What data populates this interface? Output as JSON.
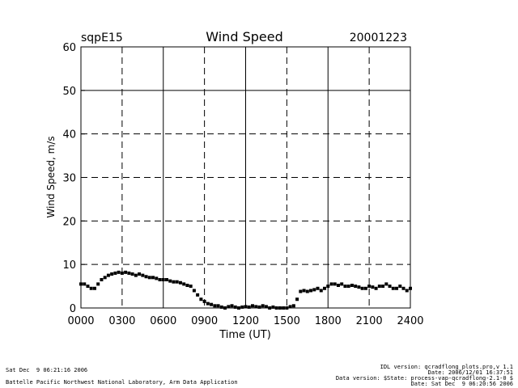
{
  "header": {
    "site": "sqpE15",
    "date": "20001223"
  },
  "chart_data": {
    "type": "scatter",
    "title": "Wind Speed",
    "xlabel": "Time (UT)",
    "ylabel": "Wind Speed, m/s",
    "xlim": [
      0,
      24
    ],
    "ylim": [
      0,
      60
    ],
    "xticks": [
      0,
      3,
      6,
      9,
      12,
      15,
      18,
      21,
      24
    ],
    "xtick_labels": [
      "0000",
      "0300",
      "0600",
      "0900",
      "1200",
      "1500",
      "1800",
      "2100",
      "2400"
    ],
    "yticks": [
      0,
      10,
      20,
      30,
      40,
      50,
      60
    ],
    "ytick_labels": [
      "0",
      "10",
      "20",
      "30",
      "40",
      "50",
      "60"
    ],
    "grid": true,
    "series": [
      {
        "x": [
          0.0,
          0.25,
          0.5,
          0.75,
          1.0,
          1.25,
          1.5,
          1.75,
          2.0,
          2.25,
          2.5,
          2.75,
          3.0,
          3.25,
          3.5,
          3.75,
          4.0,
          4.25,
          4.5,
          4.75,
          5.0,
          5.25,
          5.5,
          5.75,
          6.0,
          6.25,
          6.5,
          6.75,
          7.0,
          7.25,
          7.5,
          7.75,
          8.0,
          8.25,
          8.5,
          8.75,
          9.0,
          9.25,
          9.5,
          9.75,
          10.0,
          10.25,
          10.5,
          10.75,
          11.0,
          11.25,
          11.5,
          11.75,
          12.0,
          12.25,
          12.5,
          12.75,
          13.0,
          13.25,
          13.5,
          13.75,
          14.0,
          14.25,
          14.5,
          14.75,
          15.0,
          15.25,
          15.5,
          15.75,
          16.0,
          16.25,
          16.5,
          16.75,
          17.0,
          17.25,
          17.5,
          17.75,
          18.0,
          18.25,
          18.5,
          18.75,
          19.0,
          19.25,
          19.5,
          19.75,
          20.0,
          20.25,
          20.5,
          20.75,
          21.0,
          21.25,
          21.5,
          21.75,
          22.0,
          22.25,
          22.5,
          22.75,
          23.0,
          23.25,
          23.5,
          23.75,
          24.0
        ],
        "y": [
          5.5,
          5.5,
          5.0,
          4.5,
          4.5,
          5.5,
          6.5,
          7.0,
          7.5,
          7.8,
          8.0,
          8.2,
          8.0,
          8.2,
          8.0,
          7.8,
          7.5,
          7.8,
          7.5,
          7.2,
          7.0,
          7.0,
          6.8,
          6.5,
          6.5,
          6.5,
          6.2,
          6.0,
          6.0,
          5.8,
          5.5,
          5.2,
          5.0,
          4.0,
          3.0,
          2.0,
          1.5,
          1.0,
          0.8,
          0.5,
          0.5,
          0.2,
          0.0,
          0.3,
          0.5,
          0.2,
          0.0,
          0.2,
          0.3,
          0.2,
          0.5,
          0.3,
          0.2,
          0.5,
          0.3,
          0.0,
          0.2,
          0.0,
          0.0,
          0.0,
          0.0,
          0.3,
          0.5,
          2.0,
          3.8,
          4.0,
          3.8,
          4.0,
          4.2,
          4.5,
          4.0,
          4.5,
          5.0,
          5.5,
          5.5,
          5.2,
          5.5,
          5.0,
          5.0,
          5.2,
          5.0,
          4.8,
          4.5,
          4.5,
          5.0,
          4.8,
          4.5,
          5.0,
          5.0,
          5.5,
          5.0,
          4.5,
          4.5,
          5.0,
          4.5,
          4.0,
          4.5
        ]
      }
    ]
  },
  "footer": {
    "left_line1": "Sat Dec  9 06:21:16 2006",
    "left_line2": "Battelle Pacific Northwest National Laboratory, Arm Data Application",
    "right_line1": "IDL version: qcradflong_plots.pro,v 1.1",
    "right_line2": "Date: 2006/12/01 16:37:51",
    "right_line3": "Data version: $State: process-vap-qcradflong-2.1-0 $",
    "right_line4": "Date: Sat Dec  9 06:20:56 2006"
  }
}
